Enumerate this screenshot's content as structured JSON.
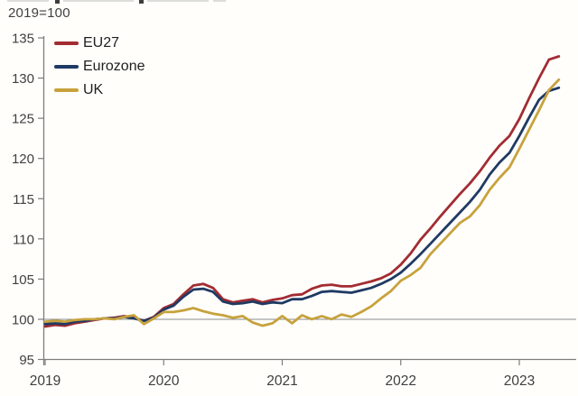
{
  "header": {
    "subtitle": "2019=100"
  },
  "legend": [
    {
      "label": "EU27",
      "color": "#a22c32"
    },
    {
      "label": "Eurozone",
      "color": "#1f3a63"
    },
    {
      "label": "UK",
      "color": "#c7a23c"
    }
  ],
  "chart_data": {
    "type": "line",
    "title_clipped": true,
    "subtitle": "2019=100",
    "x_unit": "month",
    "x_range": "2019-01 to 2023-05",
    "x_tick_labels": [
      "2019",
      "2020",
      "2021",
      "2022",
      "2023"
    ],
    "y_ticks": [
      95,
      100,
      105,
      110,
      115,
      120,
      125,
      130,
      135
    ],
    "ylim": [
      95,
      135
    ],
    "reference_line": 100,
    "grid": false,
    "legend_position": "top-left",
    "series": [
      {
        "name": "EU27",
        "color": "#a22c32",
        "values": [
          99.1,
          99.3,
          99.2,
          99.5,
          99.7,
          99.9,
          100.1,
          100.2,
          100.4,
          100.2,
          99.8,
          100.3,
          101.4,
          101.9,
          103.1,
          104.2,
          104.4,
          103.9,
          102.5,
          102.1,
          102.3,
          102.5,
          102.1,
          102.4,
          102.6,
          103.0,
          103.1,
          103.8,
          104.2,
          104.3,
          104.1,
          104.1,
          104.4,
          104.7,
          105.1,
          105.7,
          106.8,
          108.2,
          109.9,
          111.3,
          112.8,
          114.2,
          115.6,
          116.9,
          118.4,
          120.1,
          121.6,
          122.8,
          124.9,
          127.5,
          130.0,
          132.3,
          132.7
        ]
      },
      {
        "name": "Eurozone",
        "color": "#1f3a63",
        "values": [
          99.4,
          99.5,
          99.4,
          99.7,
          99.8,
          100.0,
          100.1,
          100.1,
          100.3,
          100.1,
          99.8,
          100.2,
          101.2,
          101.7,
          102.8,
          103.7,
          103.8,
          103.4,
          102.2,
          101.9,
          102.0,
          102.2,
          101.9,
          102.1,
          102.0,
          102.5,
          102.5,
          102.9,
          103.4,
          103.5,
          103.4,
          103.3,
          103.6,
          103.9,
          104.4,
          105.0,
          105.8,
          106.9,
          108.1,
          109.4,
          110.7,
          112.0,
          113.3,
          114.6,
          116.1,
          118.0,
          119.5,
          120.7,
          122.8,
          125.1,
          127.3,
          128.4,
          128.8
        ]
      },
      {
        "name": "UK",
        "color": "#c7a23c",
        "values": [
          99.7,
          99.8,
          99.7,
          99.9,
          100.0,
          100.0,
          100.1,
          100.0,
          100.3,
          100.5,
          99.4,
          100.1,
          100.9,
          100.9,
          101.1,
          101.4,
          101.0,
          100.7,
          100.5,
          100.2,
          100.4,
          99.6,
          99.2,
          99.5,
          100.4,
          99.5,
          100.5,
          100.0,
          100.4,
          100.0,
          100.6,
          100.3,
          100.9,
          101.6,
          102.6,
          103.5,
          104.8,
          105.5,
          106.4,
          108.1,
          109.4,
          110.7,
          112.0,
          112.8,
          114.2,
          116.1,
          117.6,
          118.9,
          121.2,
          123.6,
          126.0,
          128.5,
          129.8
        ]
      }
    ]
  }
}
